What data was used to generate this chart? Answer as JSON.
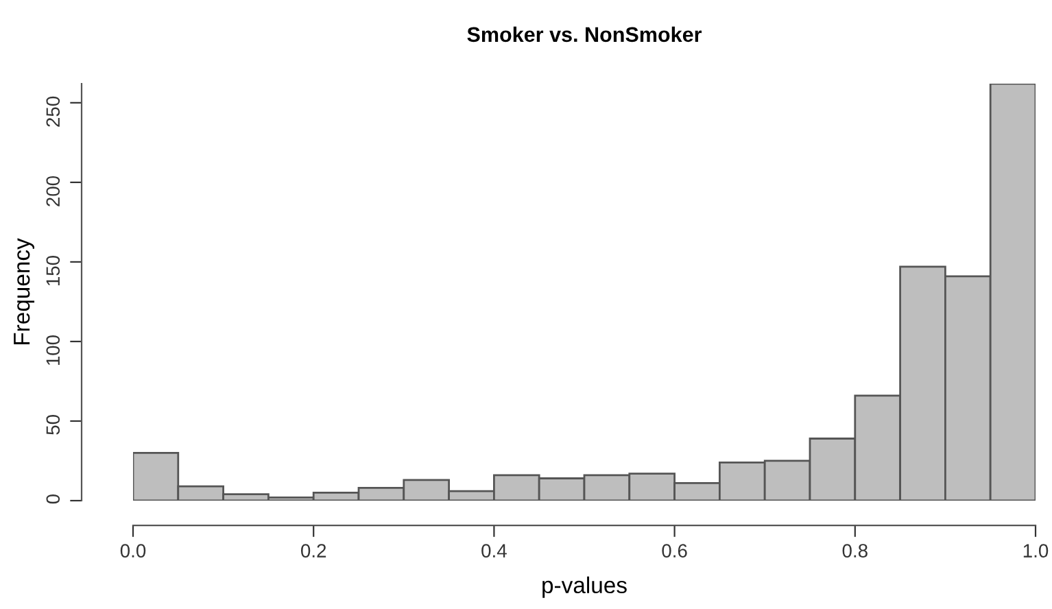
{
  "chart_data": {
    "type": "histogram",
    "title": "Smoker vs. NonSmoker",
    "xlabel": "p-values",
    "ylabel": "Frequency",
    "bins": [
      0,
      0.05,
      0.1,
      0.15,
      0.2,
      0.25,
      0.3,
      0.35,
      0.4,
      0.45,
      0.5,
      0.55,
      0.6,
      0.65,
      0.7,
      0.75,
      0.8,
      0.85,
      0.9,
      0.95,
      1.0
    ],
    "values": [
      30,
      9,
      4,
      2,
      5,
      8,
      13,
      6,
      16,
      14,
      16,
      17,
      11,
      24,
      25,
      39,
      66,
      147,
      141,
      262
    ],
    "color": "#bebebe",
    "xlim": [
      0,
      1
    ],
    "ylim": [
      0,
      262
    ],
    "xticks": [
      {
        "value": 0,
        "label": "0.0"
      },
      0.2,
      0.4,
      0.6,
      0.8,
      {
        "value": 1,
        "label": "1.0"
      }
    ],
    "yticks": [
      0,
      50,
      100,
      150,
      200,
      250
    ],
    "grid": false
  }
}
